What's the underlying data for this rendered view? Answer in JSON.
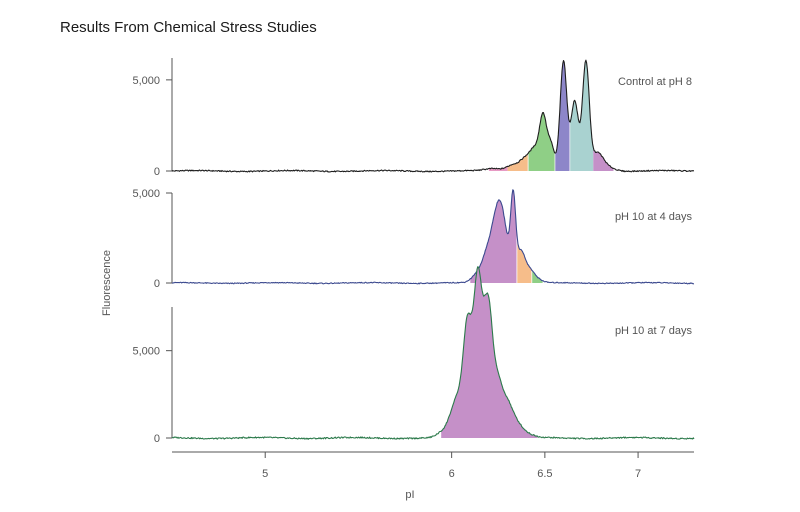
{
  "title": "Results From Chemical Stress Studies",
  "chart_data": {
    "type": "area",
    "title": "Results From Chemical Stress Studies",
    "xlabel": "pI",
    "ylabel": "Fluorescence",
    "xlim": [
      4.5,
      7.3
    ],
    "x_ticks": [
      5,
      6,
      6.5,
      7
    ],
    "x_tick_labels": [
      "5",
      "6",
      "6.5",
      "7"
    ],
    "colors": {
      "pink": "#e79ac4",
      "orange": "#f6bd8a",
      "green": "#8fcf86",
      "blue": "#8d86c9",
      "teal": "#a9d2d0",
      "purple": "#c590c8",
      "line_black": "#1e1e1e",
      "line_blue": "#3c4a8f",
      "line_green": "#2c7a4b"
    },
    "panels": [
      {
        "label": "Control at pH 8",
        "ylim": [
          0,
          6200
        ],
        "y_ticks": [
          0,
          5000
        ],
        "y_tick_labels": [
          "0",
          "5,000"
        ],
        "line_color": "#1e1e1e",
        "peaks": [
          {
            "x": 6.22,
            "y": 120,
            "w": 0.04
          },
          {
            "x": 6.33,
            "y": 350,
            "w": 0.035
          },
          {
            "x": 6.4,
            "y": 700,
            "w": 0.03
          },
          {
            "x": 6.45,
            "y": 1100,
            "w": 0.025
          },
          {
            "x": 6.49,
            "y": 2700,
            "w": 0.018
          },
          {
            "x": 6.53,
            "y": 1500,
            "w": 0.02
          },
          {
            "x": 6.6,
            "y": 6000,
            "w": 0.018
          },
          {
            "x": 6.66,
            "y": 3800,
            "w": 0.02
          },
          {
            "x": 6.72,
            "y": 5900,
            "w": 0.018
          },
          {
            "x": 6.78,
            "y": 900,
            "w": 0.03
          },
          {
            "x": 6.83,
            "y": 250,
            "w": 0.04
          }
        ],
        "regions": [
          {
            "from": 6.2,
            "to": 6.3,
            "color": "pink"
          },
          {
            "from": 6.3,
            "to": 6.41,
            "color": "orange"
          },
          {
            "from": 6.41,
            "to": 6.555,
            "color": "green"
          },
          {
            "from": 6.555,
            "to": 6.635,
            "color": "blue"
          },
          {
            "from": 6.635,
            "to": 6.76,
            "color": "teal"
          },
          {
            "from": 6.76,
            "to": 6.87,
            "color": "purple"
          }
        ]
      },
      {
        "label": "pH 10 at 4 days",
        "ylim": [
          0,
          5000
        ],
        "y_ticks": [
          0,
          5000
        ],
        "y_tick_labels": [
          "0",
          "5,000"
        ],
        "line_color": "#3c4a8f",
        "peaks": [
          {
            "x": 6.14,
            "y": 500,
            "w": 0.03
          },
          {
            "x": 6.19,
            "y": 1500,
            "w": 0.025
          },
          {
            "x": 6.23,
            "y": 2500,
            "w": 0.022
          },
          {
            "x": 6.26,
            "y": 2900,
            "w": 0.02
          },
          {
            "x": 6.29,
            "y": 2100,
            "w": 0.02
          },
          {
            "x": 6.33,
            "y": 4700,
            "w": 0.014
          },
          {
            "x": 6.37,
            "y": 1600,
            "w": 0.02
          },
          {
            "x": 6.41,
            "y": 700,
            "w": 0.025
          },
          {
            "x": 6.45,
            "y": 250,
            "w": 0.03
          }
        ],
        "regions": [
          {
            "from": 6.1,
            "to": 6.35,
            "color": "purple"
          },
          {
            "from": 6.35,
            "to": 6.43,
            "color": "orange"
          },
          {
            "from": 6.43,
            "to": 6.49,
            "color": "green"
          }
        ]
      },
      {
        "label": "pH 10 at 7 days",
        "ylim": [
          0,
          7500
        ],
        "y_ticks": [
          0,
          5000
        ],
        "y_tick_labels": [
          "0",
          "5,000"
        ],
        "line_color": "#2c7a4b",
        "peaks": [
          {
            "x": 5.95,
            "y": 300,
            "w": 0.03
          },
          {
            "x": 6.0,
            "y": 1000,
            "w": 0.025
          },
          {
            "x": 6.04,
            "y": 2000,
            "w": 0.025
          },
          {
            "x": 6.08,
            "y": 5000,
            "w": 0.02
          },
          {
            "x": 6.11,
            "y": 3800,
            "w": 0.02
          },
          {
            "x": 6.14,
            "y": 7000,
            "w": 0.018
          },
          {
            "x": 6.17,
            "y": 4500,
            "w": 0.02
          },
          {
            "x": 6.2,
            "y": 5700,
            "w": 0.02
          },
          {
            "x": 6.24,
            "y": 3000,
            "w": 0.025
          },
          {
            "x": 6.29,
            "y": 1800,
            "w": 0.03
          },
          {
            "x": 6.34,
            "y": 800,
            "w": 0.035
          },
          {
            "x": 6.4,
            "y": 200,
            "w": 0.04
          }
        ],
        "regions": [
          {
            "from": 5.94,
            "to": 6.46,
            "color": "purple"
          }
        ]
      }
    ]
  }
}
